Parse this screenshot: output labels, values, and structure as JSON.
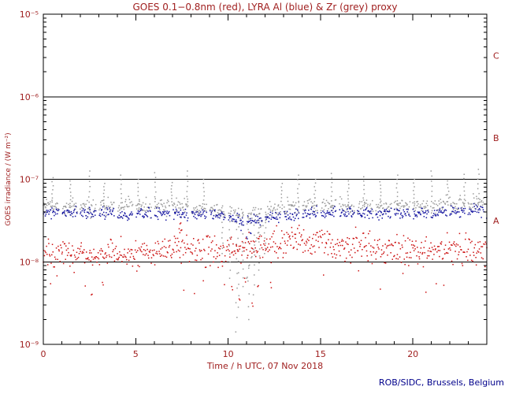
{
  "page": {
    "credit": "ROB/SIDC, Brussels, Belgium"
  },
  "chart_data": {
    "type": "scatter",
    "title": "GOES 0.1−0.8nm (red), LYRA Al (blue) & Zr (grey) proxy",
    "xlabel": "Time / h UTC, 07 Nov 2018",
    "ylabel": "GOES irradiance / (W m⁻²)",
    "xlim": [
      0,
      24
    ],
    "ylog10_lim": [
      -9,
      -5
    ],
    "x_major_ticks": [
      0,
      5,
      10,
      15,
      20
    ],
    "x_tick_labels": [
      "0",
      "5",
      "10",
      "15",
      "20"
    ],
    "y_decade_exponents": [
      -9,
      -8,
      -7,
      -6,
      -5
    ],
    "y_tick_labels": [
      "10⁻⁹",
      "10⁻⁸",
      "10⁻⁷",
      "10⁻⁶",
      "10⁻⁵"
    ],
    "grid": false,
    "legend": "in title",
    "hlines_log10": [
      -6,
      -7,
      -8
    ],
    "flare_class_labels": [
      {
        "label": "C",
        "log10_y": -5.5
      },
      {
        "label": "B",
        "log10_y": -6.5
      },
      {
        "label": "A",
        "log10_y": -7.5
      }
    ],
    "colors": {
      "axis": "#000000",
      "text": "#a02020",
      "credit": "#00008b",
      "goes_red": "#cc1111",
      "lyra_al_blue": "#1515a0",
      "lyra_zr_grey": "#9a9a9a",
      "background": "#ffffff"
    },
    "gaps": [
      [
        0.85,
        1.0
      ],
      [
        1.85,
        2.0
      ],
      [
        2.85,
        3.0
      ],
      [
        3.85,
        4.0
      ],
      [
        4.85,
        5.0
      ],
      [
        5.85,
        6.0
      ],
      [
        6.85,
        7.0
      ],
      [
        7.85,
        8.0
      ],
      [
        8.85,
        9.0
      ],
      [
        9.85,
        10.0
      ],
      [
        10.85,
        11.0
      ],
      [
        11.85,
        12.0
      ],
      [
        12.85,
        13.0
      ],
      [
        13.85,
        14.0
      ],
      [
        14.85,
        15.0
      ],
      [
        15.85,
        16.0
      ],
      [
        16.85,
        17.0
      ],
      [
        17.85,
        18.0
      ],
      [
        18.85,
        19.0
      ],
      [
        19.85,
        20.0
      ],
      [
        20.85,
        21.0
      ],
      [
        21.85,
        22.0
      ],
      [
        22.85,
        23.0
      ],
      [
        23.85,
        24.0
      ]
    ],
    "series": [
      {
        "name": "LYRA Zr proxy",
        "key": "lyra-zr",
        "color_key": "lyra_zr_grey",
        "cadence_min": 2,
        "scatter_dex": 0.05,
        "use_gaps": true,
        "baseline_log10_hourly": [
          -7.32,
          -7.33,
          -7.35,
          -7.33,
          -7.34,
          -7.35,
          -7.33,
          -7.31,
          -7.34,
          -7.36,
          -7.41,
          -7.46,
          -7.4,
          -7.35,
          -7.33,
          -7.31,
          -7.32,
          -7.33,
          -7.33,
          -7.31,
          -7.32,
          -7.33,
          -7.31,
          -7.29,
          -7.29
        ],
        "spikes": [
          [
            0.5,
            -6.98
          ],
          [
            1.45,
            -7.02
          ],
          [
            2.5,
            -6.9
          ],
          [
            3.3,
            -7.05
          ],
          [
            4.2,
            -6.95
          ],
          [
            5.15,
            -7.0
          ],
          [
            6.05,
            -6.92
          ],
          [
            6.95,
            -7.04
          ],
          [
            7.8,
            -6.9
          ],
          [
            8.7,
            -7.0
          ],
          [
            12.9,
            -7.05
          ],
          [
            13.8,
            -6.95
          ],
          [
            14.7,
            -7.0
          ],
          [
            15.6,
            -6.93
          ],
          [
            16.5,
            -7.02
          ],
          [
            17.35,
            -6.97
          ],
          [
            18.25,
            -7.03
          ],
          [
            19.15,
            -6.95
          ],
          [
            20.05,
            -7.0
          ],
          [
            21.0,
            -6.9
          ],
          [
            21.9,
            -7.02
          ],
          [
            22.8,
            -6.94
          ],
          [
            23.55,
            -6.88
          ]
        ],
        "dips": [
          [
            9.7,
            -7.9
          ],
          [
            10.1,
            -8.2
          ],
          [
            10.45,
            -8.85
          ],
          [
            10.55,
            -8.55
          ],
          [
            10.8,
            -8.3
          ],
          [
            11.1,
            -8.7
          ],
          [
            11.4,
            -8.4
          ],
          [
            11.7,
            -8.1
          ],
          [
            12.0,
            -7.9
          ]
        ],
        "extra_points": [
          [
            11.0,
            -8.2
          ],
          [
            11.12,
            -8.05
          ],
          [
            11.25,
            -7.95
          ],
          [
            11.38,
            -7.85
          ],
          [
            11.5,
            -7.75
          ],
          [
            11.62,
            -7.65
          ],
          [
            11.75,
            -7.58
          ],
          [
            11.85,
            -7.5
          ]
        ]
      },
      {
        "name": "LYRA Al proxy",
        "key": "lyra-al",
        "color_key": "lyra_al_blue",
        "cadence_min": 2,
        "scatter_dex": 0.035,
        "use_gaps": true,
        "baseline_log10_hourly": [
          -7.38,
          -7.4,
          -7.42,
          -7.4,
          -7.42,
          -7.43,
          -7.41,
          -7.4,
          -7.42,
          -7.43,
          -7.46,
          -7.5,
          -7.47,
          -7.44,
          -7.42,
          -7.4,
          -7.4,
          -7.41,
          -7.42,
          -7.4,
          -7.41,
          -7.42,
          -7.4,
          -7.38,
          -7.38
        ],
        "spikes": [],
        "dips": [],
        "extra_points": [
          [
            10.7,
            -7.62
          ],
          [
            11.0,
            -7.7
          ],
          [
            11.2,
            -7.65
          ]
        ]
      },
      {
        "name": "GOES 0.1−0.8nm",
        "key": "goes-xray",
        "color_key": "goes_red",
        "cadence_min": 2,
        "scatter_dex": 0.085,
        "use_gaps": false,
        "outlier_rate": 0.025,
        "outlier_dex": -0.35,
        "baseline_log10_hourly": [
          -7.88,
          -7.9,
          -7.92,
          -7.9,
          -7.91,
          -7.93,
          -7.9,
          -7.8,
          -7.86,
          -7.88,
          -7.88,
          -7.85,
          -7.8,
          -7.76,
          -7.74,
          -7.77,
          -7.8,
          -7.82,
          -7.82,
          -7.84,
          -7.85,
          -7.86,
          -7.85,
          -7.87,
          -7.88
        ],
        "spikes": [],
        "dips": [],
        "extra_points": [
          [
            2.6,
            -8.4
          ],
          [
            3.2,
            -8.25
          ],
          [
            7.35,
            -7.6
          ],
          [
            7.4,
            -7.54
          ],
          [
            7.45,
            -7.62
          ],
          [
            10.2,
            -8.3
          ],
          [
            10.6,
            -8.45
          ],
          [
            10.9,
            -8.2
          ],
          [
            11.3,
            -8.5
          ],
          [
            11.6,
            -8.3
          ],
          [
            12.3,
            -8.25
          ]
        ]
      }
    ]
  }
}
